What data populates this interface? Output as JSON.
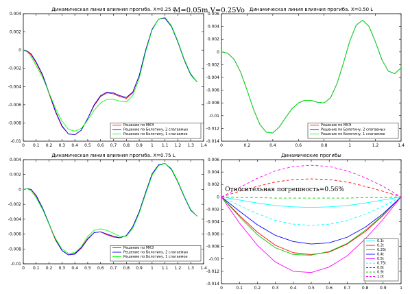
{
  "figure": {
    "suptitle": "M=0.05m  V=0.25Vo"
  },
  "chart_data": [
    {
      "type": "line",
      "title": "Динамическая линия влияния прогиба. X=0.25 L",
      "xlim": [
        0,
        1.4
      ],
      "ylim": [
        -0.01,
        0.004
      ],
      "xticks": [
        "0",
        "0.1",
        "0.2",
        "0.3",
        "0.4",
        "0.5",
        "0.6",
        "0.7",
        "0.8",
        "0.9",
        "1",
        "1.1",
        "1.2",
        "1.3",
        "1.4"
      ],
      "yticks": [
        "0.004",
        "0.002",
        "0",
        "-0.002",
        "-0.004",
        "-0.006",
        "-0.008",
        "-0.01"
      ],
      "legend_position": "bottom-right",
      "series": [
        {
          "name": "Решение по МКЭ",
          "color": "#ff0000",
          "dash": "solid",
          "x": [
            0,
            0.03,
            0.06,
            0.1,
            0.15,
            0.2,
            0.25,
            0.3,
            0.35,
            0.4,
            0.45,
            0.5,
            0.55,
            0.6,
            0.65,
            0.7,
            0.75,
            0.8,
            0.85,
            0.9,
            0.95,
            1.0,
            1.05,
            1.1,
            1.15,
            1.2,
            1.25,
            1.3,
            1.35
          ],
          "y": [
            0,
            -0.0001,
            -0.0005,
            -0.0014,
            -0.0028,
            -0.0048,
            -0.0068,
            -0.0084,
            -0.0092,
            -0.0093,
            -0.0088,
            -0.0075,
            -0.0061,
            -0.0051,
            -0.0047,
            -0.0048,
            -0.0051,
            -0.0053,
            -0.0047,
            -0.0028,
            0,
            0.0023,
            0.0034,
            0.0035,
            0.0026,
            0.0009,
            -0.0011,
            -0.0027,
            -0.0035
          ]
        },
        {
          "name": "Решение по Болотину, 2 слагаемых",
          "color": "#0000ff",
          "dash": "solid",
          "x": [
            0,
            0.03,
            0.06,
            0.1,
            0.15,
            0.2,
            0.25,
            0.3,
            0.35,
            0.4,
            0.45,
            0.5,
            0.55,
            0.6,
            0.65,
            0.7,
            0.75,
            0.8,
            0.85,
            0.9,
            0.95,
            1.0,
            1.05,
            1.1,
            1.15,
            1.2,
            1.25,
            1.3,
            1.35
          ],
          "y": [
            0,
            -0.0001,
            -0.0004,
            -0.0013,
            -0.0027,
            -0.0047,
            -0.0067,
            -0.0083,
            -0.0092,
            -0.0093,
            -0.0088,
            -0.0075,
            -0.006,
            -0.005,
            -0.0046,
            -0.0047,
            -0.005,
            -0.0052,
            -0.0046,
            -0.0028,
            0,
            0.0023,
            0.0034,
            0.0035,
            0.0026,
            0.0009,
            -0.0011,
            -0.0027,
            -0.0035
          ]
        },
        {
          "name": "Решение по Болотину, 1 слагаемое",
          "color": "#00ff00",
          "dash": "solid",
          "x": [
            0,
            0.03,
            0.06,
            0.1,
            0.15,
            0.2,
            0.25,
            0.3,
            0.35,
            0.4,
            0.45,
            0.5,
            0.55,
            0.6,
            0.65,
            0.7,
            0.75,
            0.8,
            0.85,
            0.9,
            0.95,
            1.0,
            1.05,
            1.1,
            1.15,
            1.2,
            1.25,
            1.3,
            1.35
          ],
          "y": [
            0,
            -0.0002,
            -0.0007,
            -0.0017,
            -0.003,
            -0.0047,
            -0.0064,
            -0.0078,
            -0.0087,
            -0.0089,
            -0.0086,
            -0.0077,
            -0.0066,
            -0.0058,
            -0.0054,
            -0.0054,
            -0.0056,
            -0.0057,
            -0.005,
            -0.0031,
            -0.0002,
            0.0022,
            0.0034,
            0.0036,
            0.0027,
            0.001,
            -0.001,
            -0.0026,
            -0.0035
          ]
        }
      ]
    },
    {
      "type": "line",
      "title": "Динамическая линия влияния прогиба. X=0.50 L",
      "xlim": [
        0,
        1.4
      ],
      "ylim": [
        -0.014,
        0.006
      ],
      "xticks": [
        "0",
        "0.2",
        "0.4",
        "0.6",
        "0.8",
        "1",
        "1.2",
        "1.4"
      ],
      "yticks": [
        "0.006",
        "0.004",
        "0.002",
        "0",
        "-0.002",
        "-0.004",
        "-0.006",
        "-0.008",
        "-0.01",
        "-0.012",
        "-0.014"
      ],
      "legend_position": "bottom-right",
      "series": [
        {
          "name": "Решение по МКЭ",
          "color": "#ff0000",
          "dash": "solid",
          "x": [
            0,
            0.05,
            0.1,
            0.15,
            0.2,
            0.25,
            0.3,
            0.35,
            0.4,
            0.45,
            0.5,
            0.55,
            0.6,
            0.65,
            0.7,
            0.75,
            0.8,
            0.85,
            0.9,
            0.95,
            1.0,
            1.05,
            1.1,
            1.15,
            1.2,
            1.25,
            1.3,
            1.35,
            1.4
          ],
          "y": [
            0,
            -0.0002,
            -0.0012,
            -0.0032,
            -0.006,
            -0.009,
            -0.0114,
            -0.0126,
            -0.0127,
            -0.0118,
            -0.0103,
            -0.0089,
            -0.008,
            -0.0076,
            -0.0076,
            -0.0079,
            -0.008,
            -0.0072,
            -0.005,
            -0.0018,
            0.0017,
            0.0042,
            0.005,
            0.004,
            0.0016,
            -0.0012,
            -0.003,
            -0.0034,
            -0.0025
          ]
        },
        {
          "name": "Решение по Болотину, 2 слагаемых",
          "color": "#0000ff",
          "dash": "solid",
          "x": [
            0,
            0.05,
            0.1,
            0.15,
            0.2,
            0.25,
            0.3,
            0.35,
            0.4,
            0.45,
            0.5,
            0.55,
            0.6,
            0.65,
            0.7,
            0.75,
            0.8,
            0.85,
            0.9,
            0.95,
            1.0,
            1.05,
            1.1,
            1.15,
            1.2,
            1.25,
            1.3,
            1.35,
            1.4
          ],
          "y": [
            0,
            -0.0002,
            -0.0012,
            -0.0032,
            -0.006,
            -0.009,
            -0.0114,
            -0.0126,
            -0.0127,
            -0.0118,
            -0.0103,
            -0.0089,
            -0.008,
            -0.0076,
            -0.0076,
            -0.0079,
            -0.008,
            -0.0072,
            -0.005,
            -0.0018,
            0.0017,
            0.0042,
            0.005,
            0.004,
            0.0016,
            -0.0012,
            -0.003,
            -0.0034,
            -0.0025
          ]
        },
        {
          "name": "Решение по Болотину, 1 слагаемое",
          "color": "#00ff00",
          "dash": "solid",
          "x": [
            0,
            0.05,
            0.1,
            0.15,
            0.2,
            0.25,
            0.3,
            0.35,
            0.4,
            0.45,
            0.5,
            0.55,
            0.6,
            0.65,
            0.7,
            0.75,
            0.8,
            0.85,
            0.9,
            0.95,
            1.0,
            1.05,
            1.1,
            1.15,
            1.2,
            1.25,
            1.3,
            1.35,
            1.4
          ],
          "y": [
            0,
            -0.0002,
            -0.0012,
            -0.0032,
            -0.006,
            -0.009,
            -0.0114,
            -0.0126,
            -0.0127,
            -0.0118,
            -0.0103,
            -0.0089,
            -0.008,
            -0.0076,
            -0.0076,
            -0.0079,
            -0.008,
            -0.0072,
            -0.005,
            -0.0018,
            0.0017,
            0.0042,
            0.005,
            0.004,
            0.0016,
            -0.0012,
            -0.003,
            -0.0034,
            -0.0025
          ]
        }
      ]
    },
    {
      "type": "line",
      "title": "Динамическая линия влияния прогиба. X=0.75 L",
      "xlim": [
        0,
        1.4
      ],
      "ylim": [
        -0.01,
        0.004
      ],
      "xticks": [
        "0",
        "0.1",
        "0.2",
        "0.3",
        "0.4",
        "0.5",
        "0.6",
        "0.7",
        "0.8",
        "0.9",
        "1",
        "1.1",
        "1.2",
        "1.3",
        "1.4"
      ],
      "yticks": [
        "0.004",
        "0.002",
        "0",
        "-0.002",
        "-0.004",
        "-0.006",
        "-0.008",
        "-0.01"
      ],
      "legend_position": "bottom-right",
      "series": [
        {
          "name": "Решение по МКЭ",
          "color": "#ff0000",
          "dash": "solid",
          "x": [
            0,
            0.03,
            0.06,
            0.1,
            0.15,
            0.2,
            0.25,
            0.3,
            0.35,
            0.4,
            0.45,
            0.5,
            0.55,
            0.6,
            0.65,
            0.7,
            0.75,
            0.8,
            0.85,
            0.9,
            0.95,
            1.0,
            1.05,
            1.1,
            1.15,
            1.2,
            1.25,
            1.3,
            1.35
          ],
          "y": [
            0,
            0.0001,
            0,
            -0.0009,
            -0.0026,
            -0.0047,
            -0.0068,
            -0.0082,
            -0.0088,
            -0.0086,
            -0.0078,
            -0.0066,
            -0.0058,
            -0.0057,
            -0.0061,
            -0.0064,
            -0.0065,
            -0.0062,
            -0.005,
            -0.003,
            -0.0004,
            0.0021,
            0.0033,
            0.0035,
            0.0027,
            0.001,
            -0.001,
            -0.0028,
            -0.0036
          ]
        },
        {
          "name": "Решение по Болотину, 2 слагаемых",
          "color": "#0000ff",
          "dash": "solid",
          "x": [
            0,
            0.03,
            0.06,
            0.1,
            0.15,
            0.2,
            0.25,
            0.3,
            0.35,
            0.4,
            0.45,
            0.5,
            0.55,
            0.6,
            0.65,
            0.7,
            0.75,
            0.8,
            0.85,
            0.9,
            0.95,
            1.0,
            1.05,
            1.1,
            1.15,
            1.2,
            1.25,
            1.3,
            1.35
          ],
          "y": [
            0,
            0.0001,
            0,
            -0.0008,
            -0.0025,
            -0.0046,
            -0.0067,
            -0.0082,
            -0.0088,
            -0.0087,
            -0.0079,
            -0.0067,
            -0.0058,
            -0.0057,
            -0.006,
            -0.0063,
            -0.0065,
            -0.0062,
            -0.005,
            -0.003,
            -0.0004,
            0.0021,
            0.0033,
            0.0035,
            0.0027,
            0.001,
            -0.001,
            -0.0028,
            -0.0036
          ]
        },
        {
          "name": "Решение по Болотину, 1 слагаемое",
          "color": "#00ff00",
          "dash": "solid",
          "x": [
            0,
            0.03,
            0.06,
            0.1,
            0.15,
            0.2,
            0.25,
            0.3,
            0.35,
            0.4,
            0.45,
            0.5,
            0.55,
            0.6,
            0.65,
            0.7,
            0.75,
            0.8,
            0.85,
            0.9,
            0.95,
            1.0,
            1.05,
            1.1,
            1.15,
            1.2,
            1.25,
            1.3,
            1.35
          ],
          "y": [
            0,
            0.0001,
            -0.0002,
            -0.0011,
            -0.0027,
            -0.0047,
            -0.0066,
            -0.008,
            -0.0086,
            -0.0085,
            -0.0077,
            -0.0063,
            -0.0055,
            -0.0053,
            -0.0055,
            -0.0059,
            -0.0063,
            -0.0063,
            -0.0052,
            -0.0032,
            -0.0006,
            0.0019,
            0.0032,
            0.0035,
            0.0028,
            0.0011,
            -0.0009,
            -0.0027,
            -0.0036
          ]
        }
      ]
    },
    {
      "type": "line",
      "title": "Динамические прогибы",
      "xlim": [
        0,
        1
      ],
      "ylim": [
        -0.014,
        0.006
      ],
      "xticks": [
        "0",
        "0.1",
        "0.2",
        "0.3",
        "0.4",
        "0.5",
        "0.6",
        "0.7",
        "0.8",
        "0.9",
        "1"
      ],
      "yticks": [
        "0.006",
        "0.004",
        "0.002",
        "0",
        "-0.002",
        "-0.004",
        "-0.006",
        "-0.008",
        "-0.01",
        "-0.012",
        "-0.014"
      ],
      "annotation": "Относительная погрешность=0.56%",
      "legend_position": "bottom-right",
      "series": [
        {
          "name": "0.1t",
          "color": "#00ffff",
          "dash": "solid",
          "x": [
            0,
            0.1,
            0.2,
            0.3,
            0.4,
            0.5,
            0.6,
            0.7,
            0.8,
            0.9,
            1
          ],
          "y": [
            0,
            -0.0005,
            -0.001,
            -0.0014,
            -0.0016,
            -0.0017,
            -0.0016,
            -0.0014,
            -0.001,
            -0.0005,
            0
          ]
        },
        {
          "name": "0.2t",
          "color": "#ff0000",
          "dash": "solid",
          "x": [
            0,
            0.1,
            0.2,
            0.3,
            0.4,
            0.5,
            0.6,
            0.7,
            0.8,
            0.9,
            1
          ],
          "y": [
            0,
            -0.003,
            -0.0057,
            -0.0078,
            -0.009,
            -0.0093,
            -0.0089,
            -0.0076,
            -0.0056,
            -0.003,
            0
          ]
        },
        {
          "name": "0.25t",
          "color": "#00cc00",
          "dash": "solid",
          "x": [
            0,
            0.1,
            0.2,
            0.3,
            0.4,
            0.5,
            0.6,
            0.7,
            0.8,
            0.9,
            1
          ],
          "y": [
            0,
            -0.0032,
            -0.0061,
            -0.0082,
            -0.0093,
            -0.0094,
            -0.0088,
            -0.0075,
            -0.0054,
            -0.0029,
            0
          ]
        },
        {
          "name": "0.4t",
          "color": "#0000ff",
          "dash": "solid",
          "x": [
            0,
            0.1,
            0.2,
            0.3,
            0.4,
            0.5,
            0.6,
            0.7,
            0.8,
            0.9,
            1
          ],
          "y": [
            0,
            -0.0023,
            -0.0045,
            -0.0062,
            -0.0072,
            -0.0076,
            -0.0074,
            -0.0065,
            -0.0049,
            -0.0027,
            0
          ]
        },
        {
          "name": "0.5t",
          "color": "#ff00ff",
          "dash": "solid",
          "x": [
            0,
            0.1,
            0.2,
            0.3,
            0.4,
            0.5,
            0.6,
            0.7,
            0.8,
            0.9,
            1
          ],
          "y": [
            0,
            -0.0042,
            -0.0078,
            -0.0105,
            -0.012,
            -0.0122,
            -0.0113,
            -0.0095,
            -0.0068,
            -0.0036,
            0
          ]
        },
        {
          "name": "0.75t",
          "color": "#00ffff",
          "dash": "dashed",
          "x": [
            0,
            0.1,
            0.2,
            0.3,
            0.4,
            0.5,
            0.6,
            0.7,
            0.8,
            0.9,
            1
          ],
          "y": [
            0,
            -0.0014,
            -0.0027,
            -0.0038,
            -0.0044,
            -0.0046,
            -0.0044,
            -0.0038,
            -0.0028,
            -0.0015,
            0
          ]
        },
        {
          "name": "0.8t",
          "color": "#ff0000",
          "dash": "dashed",
          "x": [
            0,
            0.1,
            0.2,
            0.3,
            0.4,
            0.5,
            0.6,
            0.7,
            0.8,
            0.9,
            1
          ],
          "y": [
            0,
            0.0009,
            0.0017,
            0.0024,
            0.0028,
            0.0029,
            0.0028,
            0.0024,
            0.0017,
            0.0009,
            0
          ]
        },
        {
          "name": "0.9t",
          "color": "#00cc00",
          "dash": "dashed",
          "x": [
            0,
            0.1,
            0.2,
            0.3,
            0.4,
            0.5,
            0.6,
            0.7,
            0.8,
            0.9,
            1
          ],
          "y": [
            0,
            -0.0001,
            -0.0001,
            -0.0002,
            -0.0002,
            -0.0002,
            -0.0002,
            -0.0002,
            -0.0001,
            -0.0001,
            0
          ]
        },
        {
          "name": "1.0t",
          "color": "#ff00ff",
          "dash": "dashed",
          "x": [
            0,
            0.1,
            0.2,
            0.3,
            0.4,
            0.5,
            0.6,
            0.7,
            0.8,
            0.9,
            1
          ],
          "y": [
            0,
            0.0015,
            0.003,
            0.0042,
            0.0049,
            0.0051,
            0.0049,
            0.0042,
            0.0031,
            0.0017,
            0
          ]
        }
      ]
    }
  ]
}
